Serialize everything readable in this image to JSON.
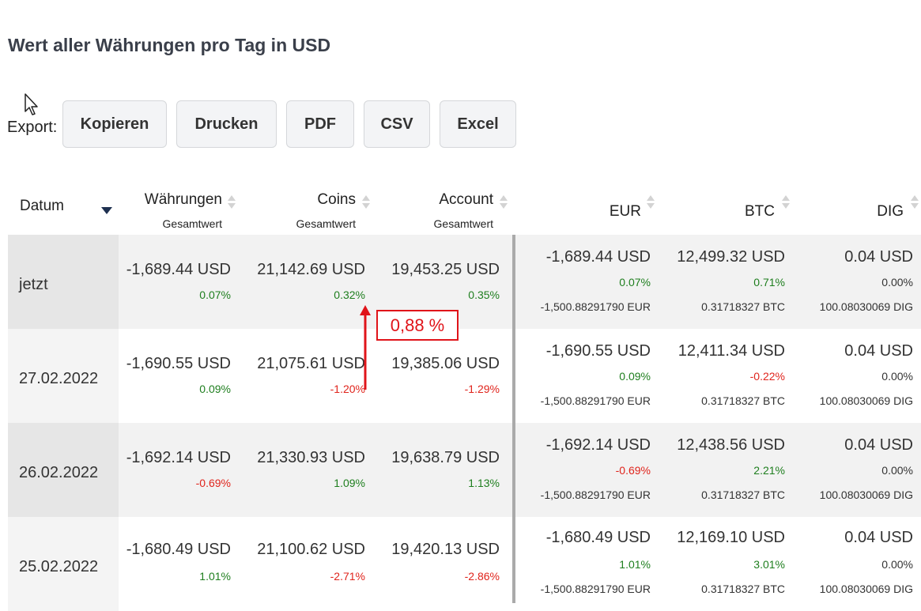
{
  "page": {
    "title": "Wert aller Währungen pro Tag in USD"
  },
  "export": {
    "label": "Export:",
    "buttons": [
      "Kopieren",
      "Drucken",
      "PDF",
      "CSV",
      "Excel"
    ]
  },
  "table": {
    "headers": {
      "datum": "Datum",
      "waehrungen": "Währungen",
      "waehrungen_sub": "Gesamtwert",
      "coins": "Coins",
      "coins_sub": "Gesamtwert",
      "account": "Account",
      "account_sub": "Gesamtwert",
      "eur": "EUR",
      "btc": "BTC",
      "dig": "DIG"
    },
    "rows": [
      {
        "date": "jetzt",
        "waehrungen": "-1,689.44 USD",
        "waehrungen_pct": "0.07%",
        "coins": "21,142.69 USD",
        "coins_pct": "0.32%",
        "account": "19,453.25 USD",
        "account_pct": "0.35%",
        "eur": "-1,689.44 USD",
        "eur_pct": "0.07%",
        "eur_amount": "-1,500.88291790 EUR",
        "btc": "12,499.32 USD",
        "btc_pct": "0.71%",
        "btc_amount": "0.31718327 BTC",
        "dig": "0.04 USD",
        "dig_pct": "0.00%",
        "dig_amount": "100.08030069 DIG"
      },
      {
        "date": "27.02.2022",
        "waehrungen": "-1,690.55 USD",
        "waehrungen_pct": "0.09%",
        "coins": "21,075.61 USD",
        "coins_pct": "-1.20%",
        "account": "19,385.06 USD",
        "account_pct": "-1.29%",
        "eur": "-1,690.55 USD",
        "eur_pct": "0.09%",
        "eur_amount": "-1,500.88291790 EUR",
        "btc": "12,411.34 USD",
        "btc_pct": "-0.22%",
        "btc_amount": "0.31718327 BTC",
        "dig": "0.04 USD",
        "dig_pct": "0.00%",
        "dig_amount": "100.08030069 DIG"
      },
      {
        "date": "26.02.2022",
        "waehrungen": "-1,692.14 USD",
        "waehrungen_pct": "-0.69%",
        "coins": "21,330.93 USD",
        "coins_pct": "1.09%",
        "account": "19,638.79 USD",
        "account_pct": "1.13%",
        "eur": "-1,692.14 USD",
        "eur_pct": "-0.69%",
        "eur_amount": "-1,500.88291790 EUR",
        "btc": "12,438.56 USD",
        "btc_pct": "2.21%",
        "btc_amount": "0.31718327 BTC",
        "dig": "0.04 USD",
        "dig_pct": "0.00%",
        "dig_amount": "100.08030069 DIG"
      },
      {
        "date": "25.02.2022",
        "waehrungen": "-1,680.49 USD",
        "waehrungen_pct": "1.01%",
        "coins": "21,100.62 USD",
        "coins_pct": "-2.71%",
        "account": "19,420.13 USD",
        "account_pct": "-2.86%",
        "eur": "-1,680.49 USD",
        "eur_pct": "1.01%",
        "eur_amount": "-1,500.88291790 EUR",
        "btc": "12,169.10 USD",
        "btc_pct": "3.01%",
        "btc_amount": "0.31718327 BTC",
        "dig": "0.04 USD",
        "dig_pct": "0.00%",
        "dig_amount": "100.08030069 DIG"
      }
    ]
  },
  "annotation": {
    "text": "0,88 %",
    "color": "#e0141a"
  },
  "colors": {
    "positive": "#1e7e1e",
    "negative": "#e0241c",
    "sort_active": "#1e3050"
  },
  "icons": [
    "mouse-pointer-icon",
    "sort-desc-icon",
    "sort-both-icon"
  ]
}
